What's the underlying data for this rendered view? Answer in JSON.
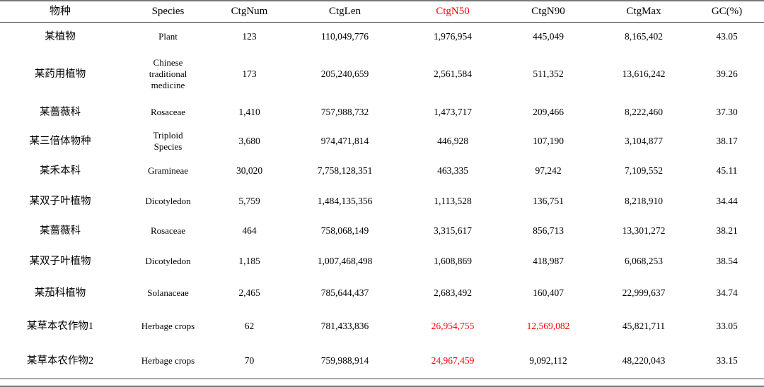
{
  "table": {
    "red_color": "#ff0000",
    "columns": [
      {
        "key": "cn",
        "label": "物种",
        "red": false
      },
      {
        "key": "en",
        "label": "Species",
        "red": false
      },
      {
        "key": "ctgNum",
        "label": "CtgNum",
        "red": false
      },
      {
        "key": "ctgLen",
        "label": "CtgLen",
        "red": false
      },
      {
        "key": "ctgN50",
        "label": "CtgN50",
        "red": true
      },
      {
        "key": "ctgN90",
        "label": "CtgN90",
        "red": false
      },
      {
        "key": "ctgMax",
        "label": "CtgMax",
        "red": false
      },
      {
        "key": "gc",
        "label": "GC(%)",
        "red": false
      }
    ],
    "rows": [
      {
        "cn": "某植物",
        "en": "Plant",
        "ctgNum": "123",
        "ctgLen": "110,049,776",
        "ctgN50": "1,976,954",
        "ctgN90": "445,049",
        "ctgMax": "8,165,402",
        "gc": "43.05",
        "red_cells": []
      },
      {
        "cn": "某药用植物",
        "en": "Chinese\ntraditional\nmedicine",
        "ctgNum": "173",
        "ctgLen": "205,240,659",
        "ctgN50": "2,561,584",
        "ctgN90": "511,352",
        "ctgMax": "13,616,242",
        "gc": "39.26",
        "red_cells": []
      },
      {
        "cn": "某蔷薇科",
        "en": "Rosaceae",
        "ctgNum": "1,410",
        "ctgLen": "757,988,732",
        "ctgN50": "1,473,717",
        "ctgN90": "209,466",
        "ctgMax": "8,222,460",
        "gc": "37.30",
        "red_cells": []
      },
      {
        "cn": "某三倍体物种",
        "en": "Triploid\nSpecies",
        "ctgNum": "3,680",
        "ctgLen": "974,471,814",
        "ctgN50": "446,928",
        "ctgN90": "107,190",
        "ctgMax": "3,104,877",
        "gc": "38.17",
        "red_cells": []
      },
      {
        "cn": "某禾本科",
        "en": "Gramineae",
        "ctgNum": "30,020",
        "ctgLen": "7,758,128,351",
        "ctgN50": "463,335",
        "ctgN90": "97,242",
        "ctgMax": "7,109,552",
        "gc": "45.11",
        "red_cells": []
      },
      {
        "cn": "某双子叶植物",
        "en": "Dicotyledon",
        "ctgNum": "5,759",
        "ctgLen": "1,484,135,356",
        "ctgN50": "1,113,528",
        "ctgN90": "136,751",
        "ctgMax": "8,218,910",
        "gc": "34.44",
        "red_cells": []
      },
      {
        "cn": "某蔷薇科",
        "en": "Rosaceae",
        "ctgNum": "464",
        "ctgLen": "758,068,149",
        "ctgN50": "3,315,617",
        "ctgN90": "856,713",
        "ctgMax": "13,301,272",
        "gc": "38.21",
        "red_cells": []
      },
      {
        "cn": "某双子叶植物",
        "en": "Dicotyledon",
        "ctgNum": "1,185",
        "ctgLen": "1,007,468,498",
        "ctgN50": "1,608,869",
        "ctgN90": "418,987",
        "ctgMax": "6,068,253",
        "gc": "38.54",
        "red_cells": []
      },
      {
        "cn": "某茄科植物",
        "en": "Solanaceae",
        "ctgNum": "2,465",
        "ctgLen": "785,644,437",
        "ctgN50": "2,683,492",
        "ctgN90": "160,407",
        "ctgMax": "22,999,637",
        "gc": "34.74",
        "red_cells": []
      },
      {
        "cn": "某草本农作物1",
        "en": "Herbage crops",
        "ctgNum": "62",
        "ctgLen": "781,433,836",
        "ctgN50": "26,954,755",
        "ctgN90": "12,569,082",
        "ctgMax": "45,821,711",
        "gc": "33.05",
        "red_cells": [
          "ctgN50",
          "ctgN90"
        ]
      },
      {
        "cn": "某草本农作物2",
        "en": "Herbage crops",
        "ctgNum": "70",
        "ctgLen": "759,988,914",
        "ctgN50": "24,967,459",
        "ctgN90": "9,092,112",
        "ctgMax": "48,220,043",
        "gc": "33.15",
        "red_cells": [
          "ctgN50"
        ]
      }
    ]
  }
}
